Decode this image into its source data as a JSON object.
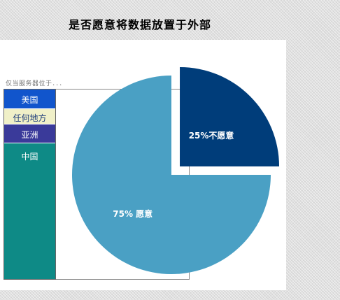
{
  "title": "是否愿意将数据放置于外部",
  "subtitle": "仅当服务器位于．．．",
  "stack": {
    "segments": [
      {
        "label": "美国",
        "color": "#1155cc",
        "text_color": "#ffffff",
        "share": 0.1
      },
      {
        "label": "任何地方",
        "color": "#f0f0c8",
        "text_color": "#1a3a7a",
        "share": 0.08
      },
      {
        "label": "亚洲",
        "color": "#3a3a9a",
        "text_color": "#ffffff",
        "share": 0.1
      },
      {
        "label": "中国",
        "color": "#0e8a86",
        "text_color": "#ffffff",
        "share": 0.72
      }
    ]
  },
  "chart_data": {
    "type": "pie",
    "slices": [
      {
        "label": "75% 愿意",
        "value": 75,
        "color": "#4aa0c4",
        "exploded": false
      },
      {
        "label": "25%不愿意",
        "value": 25,
        "color": "#003d7a",
        "exploded": true
      }
    ]
  }
}
